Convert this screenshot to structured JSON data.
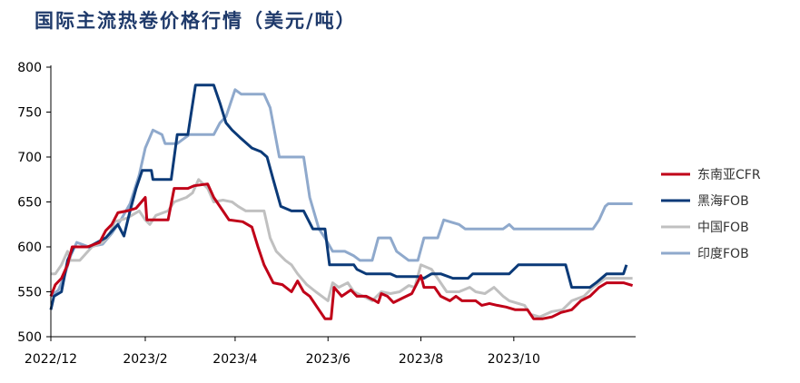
{
  "chart_data": {
    "type": "line",
    "title": "国际主流热卷价格行情（美元/吨）",
    "xlabel": "",
    "ylabel": "",
    "ylim": [
      500,
      800
    ],
    "yticks": [
      500,
      550,
      600,
      650,
      700,
      750,
      800
    ],
    "xlim": [
      "2022-12-01",
      "2023-12-20"
    ],
    "xticks": [
      {
        "date": "2022-12-01",
        "label": "2022/12"
      },
      {
        "date": "2023-02-01",
        "label": "2023/2"
      },
      {
        "date": "2023-04-01",
        "label": "2023/4"
      },
      {
        "date": "2023-06-01",
        "label": "2023/6"
      },
      {
        "date": "2023-08-01",
        "label": "2023/8"
      },
      {
        "date": "2023-10-01",
        "label": "2023/10"
      }
    ],
    "grid": false,
    "legend_position": "right",
    "series": [
      {
        "name": "东南亚CFR",
        "color": "#c00018",
        "points": [
          [
            "2022-12-01",
            545
          ],
          [
            "2022-12-04",
            558
          ],
          [
            "2022-12-08",
            565
          ],
          [
            "2022-12-12",
            580
          ],
          [
            "2022-12-15",
            600
          ],
          [
            "2022-12-25",
            600
          ],
          [
            "2023-01-02",
            605
          ],
          [
            "2023-01-06",
            618
          ],
          [
            "2023-01-10",
            625
          ],
          [
            "2023-01-14",
            638
          ],
          [
            "2023-01-20",
            640
          ],
          [
            "2023-01-26",
            643
          ],
          [
            "2023-02-01",
            655
          ],
          [
            "2023-02-02",
            630
          ],
          [
            "2023-02-10",
            630
          ],
          [
            "2023-02-16",
            630
          ],
          [
            "2023-02-20",
            665
          ],
          [
            "2023-03-01",
            665
          ],
          [
            "2023-03-05",
            668
          ],
          [
            "2023-03-14",
            670
          ],
          [
            "2023-03-18",
            655
          ],
          [
            "2023-03-24",
            640
          ],
          [
            "2023-03-28",
            630
          ],
          [
            "2023-04-06",
            628
          ],
          [
            "2023-04-12",
            622
          ],
          [
            "2023-04-16",
            600
          ],
          [
            "2023-04-20",
            580
          ],
          [
            "2023-04-26",
            560
          ],
          [
            "2023-05-02",
            558
          ],
          [
            "2023-05-08",
            550
          ],
          [
            "2023-05-12",
            562
          ],
          [
            "2023-05-16",
            550
          ],
          [
            "2023-05-20",
            545
          ],
          [
            "2023-05-26",
            530
          ],
          [
            "2023-05-30",
            520
          ],
          [
            "2023-06-03",
            520
          ],
          [
            "2023-06-05",
            555
          ],
          [
            "2023-06-10",
            545
          ],
          [
            "2023-06-16",
            552
          ],
          [
            "2023-06-20",
            545
          ],
          [
            "2023-06-26",
            545
          ],
          [
            "2023-07-02",
            540
          ],
          [
            "2023-07-04",
            538
          ],
          [
            "2023-07-06",
            548
          ],
          [
            "2023-07-10",
            545
          ],
          [
            "2023-07-14",
            538
          ],
          [
            "2023-07-20",
            543
          ],
          [
            "2023-07-26",
            548
          ],
          [
            "2023-08-01",
            568
          ],
          [
            "2023-08-03",
            555
          ],
          [
            "2023-08-10",
            555
          ],
          [
            "2023-08-14",
            545
          ],
          [
            "2023-08-20",
            540
          ],
          [
            "2023-08-24",
            545
          ],
          [
            "2023-08-28",
            540
          ],
          [
            "2023-09-06",
            540
          ],
          [
            "2023-09-10",
            535
          ],
          [
            "2023-09-15",
            537
          ],
          [
            "2023-09-20",
            535
          ],
          [
            "2023-09-26",
            533
          ],
          [
            "2023-10-02",
            530
          ],
          [
            "2023-10-10",
            530
          ],
          [
            "2023-10-14",
            520
          ],
          [
            "2023-10-20",
            520
          ],
          [
            "2023-10-26",
            522
          ],
          [
            "2023-11-01",
            527
          ],
          [
            "2023-11-08",
            530
          ],
          [
            "2023-11-14",
            540
          ],
          [
            "2023-11-20",
            545
          ],
          [
            "2023-11-26",
            555
          ],
          [
            "2023-12-01",
            560
          ],
          [
            "2023-12-12",
            560
          ],
          [
            "2023-12-18",
            557
          ]
        ]
      },
      {
        "name": "黑海FOB",
        "color": "#0b3a78",
        "points": [
          [
            "2022-12-01",
            530
          ],
          [
            "2022-12-03",
            545
          ],
          [
            "2022-12-08",
            550
          ],
          [
            "2022-12-12",
            585
          ],
          [
            "2022-12-16",
            600
          ],
          [
            "2022-12-26",
            600
          ],
          [
            "2023-01-06",
            610
          ],
          [
            "2023-01-14",
            625
          ],
          [
            "2023-01-18",
            612
          ],
          [
            "2023-01-22",
            640
          ],
          [
            "2023-01-26",
            665
          ],
          [
            "2023-01-30",
            685
          ],
          [
            "2023-02-05",
            685
          ],
          [
            "2023-02-06",
            675
          ],
          [
            "2023-02-18",
            675
          ],
          [
            "2023-02-22",
            725
          ],
          [
            "2023-03-01",
            725
          ],
          [
            "2023-03-06",
            780
          ],
          [
            "2023-03-18",
            780
          ],
          [
            "2023-03-22",
            760
          ],
          [
            "2023-03-26",
            738
          ],
          [
            "2023-03-30",
            730
          ],
          [
            "2023-04-04",
            722
          ],
          [
            "2023-04-12",
            710
          ],
          [
            "2023-04-18",
            706
          ],
          [
            "2023-04-22",
            700
          ],
          [
            "2023-04-26",
            675
          ],
          [
            "2023-05-01",
            645
          ],
          [
            "2023-05-08",
            640
          ],
          [
            "2023-05-16",
            640
          ],
          [
            "2023-05-22",
            620
          ],
          [
            "2023-05-30",
            620
          ],
          [
            "2023-06-02",
            580
          ],
          [
            "2023-06-18",
            580
          ],
          [
            "2023-06-20",
            575
          ],
          [
            "2023-06-26",
            570
          ],
          [
            "2023-07-12",
            570
          ],
          [
            "2023-07-16",
            567
          ],
          [
            "2023-07-30",
            567
          ],
          [
            "2023-08-03",
            565
          ],
          [
            "2023-08-08",
            570
          ],
          [
            "2023-08-14",
            570
          ],
          [
            "2023-08-22",
            565
          ],
          [
            "2023-09-01",
            565
          ],
          [
            "2023-09-04",
            570
          ],
          [
            "2023-09-28",
            570
          ],
          [
            "2023-10-01",
            575
          ],
          [
            "2023-10-04",
            580
          ],
          [
            "2023-10-26",
            580
          ],
          [
            "2023-11-04",
            580
          ],
          [
            "2023-11-08",
            555
          ],
          [
            "2023-11-20",
            555
          ],
          [
            "2023-11-24",
            560
          ],
          [
            "2023-12-01",
            570
          ],
          [
            "2023-12-12",
            570
          ],
          [
            "2023-12-14",
            580
          ]
        ]
      },
      {
        "name": "中国FOB",
        "color": "#c0c0c0",
        "points": [
          [
            "2022-12-01",
            570
          ],
          [
            "2022-12-04",
            570
          ],
          [
            "2022-12-08",
            580
          ],
          [
            "2022-12-12",
            595
          ],
          [
            "2022-12-14",
            585
          ],
          [
            "2022-12-20",
            585
          ],
          [
            "2022-12-28",
            600
          ],
          [
            "2023-01-04",
            605
          ],
          [
            "2023-01-08",
            612
          ],
          [
            "2023-01-12",
            628
          ],
          [
            "2023-01-20",
            632
          ],
          [
            "2023-01-28",
            640
          ],
          [
            "2023-02-01",
            630
          ],
          [
            "2023-02-04",
            625
          ],
          [
            "2023-02-08",
            635
          ],
          [
            "2023-02-16",
            640
          ],
          [
            "2023-02-20",
            650
          ],
          [
            "2023-02-28",
            655
          ],
          [
            "2023-03-04",
            660
          ],
          [
            "2023-03-08",
            675
          ],
          [
            "2023-03-14",
            665
          ],
          [
            "2023-03-18",
            650
          ],
          [
            "2023-03-24",
            652
          ],
          [
            "2023-03-30",
            650
          ],
          [
            "2023-04-03",
            645
          ],
          [
            "2023-04-08",
            640
          ],
          [
            "2023-04-20",
            640
          ],
          [
            "2023-04-24",
            610
          ],
          [
            "2023-04-28",
            595
          ],
          [
            "2023-05-04",
            585
          ],
          [
            "2023-05-08",
            580
          ],
          [
            "2023-05-12",
            570
          ],
          [
            "2023-05-18",
            558
          ],
          [
            "2023-05-24",
            550
          ],
          [
            "2023-05-28",
            545
          ],
          [
            "2023-06-01",
            540
          ],
          [
            "2023-06-04",
            560
          ],
          [
            "2023-06-08",
            555
          ],
          [
            "2023-06-14",
            560
          ],
          [
            "2023-06-18",
            550
          ],
          [
            "2023-06-24",
            545
          ],
          [
            "2023-06-30",
            540
          ],
          [
            "2023-07-06",
            550
          ],
          [
            "2023-07-12",
            548
          ],
          [
            "2023-07-18",
            550
          ],
          [
            "2023-07-24",
            557
          ],
          [
            "2023-07-28",
            555
          ],
          [
            "2023-08-01",
            580
          ],
          [
            "2023-08-08",
            575
          ],
          [
            "2023-08-14",
            560
          ],
          [
            "2023-08-18",
            550
          ],
          [
            "2023-08-26",
            550
          ],
          [
            "2023-09-02",
            555
          ],
          [
            "2023-09-06",
            550
          ],
          [
            "2023-09-12",
            548
          ],
          [
            "2023-09-18",
            555
          ],
          [
            "2023-09-24",
            545
          ],
          [
            "2023-09-28",
            540
          ],
          [
            "2023-10-08",
            535
          ],
          [
            "2023-10-12",
            525
          ],
          [
            "2023-10-18",
            522
          ],
          [
            "2023-10-26",
            528
          ],
          [
            "2023-11-02",
            530
          ],
          [
            "2023-11-08",
            540
          ],
          [
            "2023-11-16",
            545
          ],
          [
            "2023-11-22",
            555
          ],
          [
            "2023-11-30",
            565
          ],
          [
            "2023-12-18",
            565
          ]
        ]
      },
      {
        "name": "印度FOB",
        "color": "#8fa9cc",
        "points": [
          [
            "2022-12-01",
            545
          ],
          [
            "2022-12-06",
            552
          ],
          [
            "2022-12-10",
            568
          ],
          [
            "2022-12-14",
            590
          ],
          [
            "2022-12-18",
            605
          ],
          [
            "2022-12-26",
            600
          ],
          [
            "2023-01-04",
            603
          ],
          [
            "2023-01-10",
            615
          ],
          [
            "2023-01-16",
            630
          ],
          [
            "2023-01-22",
            648
          ],
          [
            "2023-01-28",
            680
          ],
          [
            "2023-02-01",
            710
          ],
          [
            "2023-02-06",
            730
          ],
          [
            "2023-02-12",
            725
          ],
          [
            "2023-02-14",
            715
          ],
          [
            "2023-02-22",
            715
          ],
          [
            "2023-02-26",
            720
          ],
          [
            "2023-03-02",
            725
          ],
          [
            "2023-03-18",
            725
          ],
          [
            "2023-03-22",
            738
          ],
          [
            "2023-03-26",
            745
          ],
          [
            "2023-04-01",
            775
          ],
          [
            "2023-04-05",
            770
          ],
          [
            "2023-04-20",
            770
          ],
          [
            "2023-04-24",
            755
          ],
          [
            "2023-04-30",
            700
          ],
          [
            "2023-05-16",
            700
          ],
          [
            "2023-05-20",
            655
          ],
          [
            "2023-05-26",
            620
          ],
          [
            "2023-05-30",
            610
          ],
          [
            "2023-06-04",
            595
          ],
          [
            "2023-06-12",
            595
          ],
          [
            "2023-06-18",
            590
          ],
          [
            "2023-06-22",
            585
          ],
          [
            "2023-06-30",
            585
          ],
          [
            "2023-07-04",
            610
          ],
          [
            "2023-07-12",
            610
          ],
          [
            "2023-07-16",
            595
          ],
          [
            "2023-07-20",
            590
          ],
          [
            "2023-07-24",
            585
          ],
          [
            "2023-07-30",
            585
          ],
          [
            "2023-08-03",
            610
          ],
          [
            "2023-08-12",
            610
          ],
          [
            "2023-08-16",
            630
          ],
          [
            "2023-08-20",
            628
          ],
          [
            "2023-08-26",
            625
          ],
          [
            "2023-08-30",
            620
          ],
          [
            "2023-09-24",
            620
          ],
          [
            "2023-09-28",
            625
          ],
          [
            "2023-10-01",
            620
          ],
          [
            "2023-11-22",
            620
          ],
          [
            "2023-11-26",
            630
          ],
          [
            "2023-11-30",
            645
          ],
          [
            "2023-12-02",
            648
          ],
          [
            "2023-12-18",
            648
          ]
        ]
      }
    ]
  }
}
